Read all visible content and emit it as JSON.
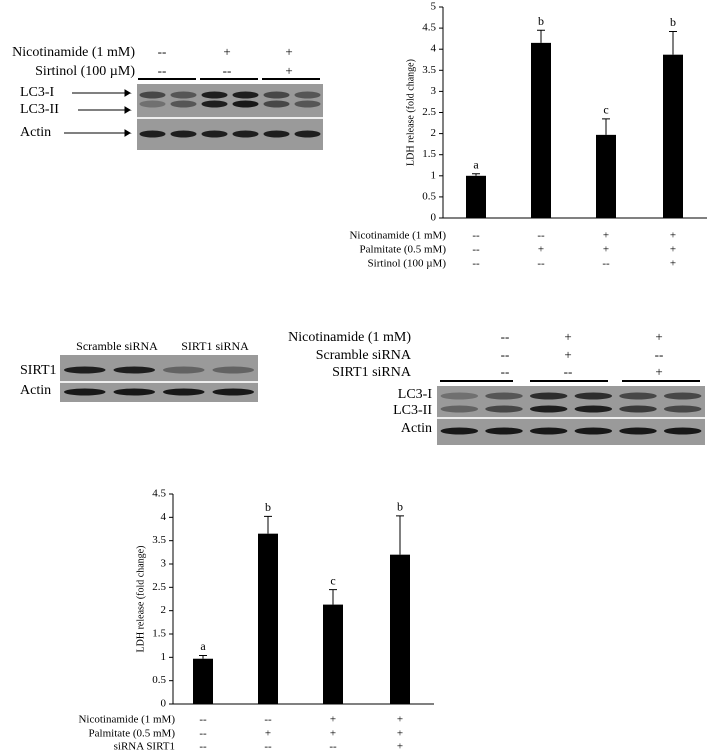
{
  "chart_data": [
    {
      "type": "bar",
      "y_label": "LDH release (fold change)",
      "categories": [
        null,
        null,
        null,
        null
      ],
      "values": [
        1.0,
        4.15,
        1.97,
        3.87
      ],
      "errors": [
        0.05,
        0.3,
        0.38,
        0.55
      ],
      "annotations": [
        "a",
        "b",
        "c",
        "b"
      ],
      "color": "#000000",
      "ylim": [
        0,
        5
      ],
      "yticks": [
        0,
        0.5,
        1,
        1.5,
        2,
        2.5,
        3,
        3.5,
        4,
        4.5,
        5
      ],
      "conditions": [
        {
          "label": "Nicotinamide (1 mM)",
          "marks": [
            "--",
            "--",
            "+",
            "+"
          ]
        },
        {
          "label": "Palmitate (0.5 mM)",
          "marks": [
            "--",
            "+",
            "+",
            "+"
          ]
        },
        {
          "label": "Sirtinol (100 µM)",
          "marks": [
            "--",
            "--",
            "--",
            "+"
          ]
        }
      ]
    },
    {
      "type": "bar",
      "y_label": "LDH release (fold change)",
      "categories": [
        null,
        null,
        null,
        null
      ],
      "values": [
        0.97,
        3.65,
        2.13,
        3.2
      ],
      "errors": [
        0.07,
        0.37,
        0.32,
        0.83
      ],
      "annotations": [
        "a",
        "b",
        "c",
        "b"
      ],
      "color": "#000000",
      "ylim": [
        0,
        4.5
      ],
      "yticks": [
        0,
        0.5,
        1,
        1.5,
        2,
        2.5,
        3,
        3.5,
        4,
        4.5
      ],
      "conditions": [
        {
          "label": "Nicotinamide (1 mM)",
          "marks": [
            "--",
            "--",
            "+",
            "+"
          ]
        },
        {
          "label": "Palmitate (0.5 mM)",
          "marks": [
            "--",
            "+",
            "+",
            "+"
          ]
        },
        {
          "label": "siRNA SIRT1",
          "marks": [
            "--",
            "--",
            "--",
            "+"
          ]
        }
      ]
    }
  ],
  "blots": [
    {
      "conditions": [
        {
          "label": "Nicotinamide (1 mM)",
          "marks": [
            "--",
            "+",
            "+"
          ]
        },
        {
          "label": "Sirtinol (100 µM)",
          "marks": [
            "--",
            "--",
            "+"
          ]
        }
      ],
      "rows": [
        "LC3-I",
        "LC3-II",
        "Actin"
      ]
    },
    {
      "groups": [
        "Scramble siRNA",
        "SIRT1 siRNA"
      ],
      "rows": [
        "SIRT1",
        "Actin"
      ]
    },
    {
      "conditions": [
        {
          "label": "Nicotinamide (1 mM)",
          "marks": [
            "--",
            "+",
            "+"
          ]
        },
        {
          "label": "Scramble siRNA",
          "marks": [
            "--",
            "+",
            "--"
          ]
        },
        {
          "label": "SIRT1 siRNA",
          "marks": [
            "--",
            "--",
            "+"
          ]
        }
      ],
      "rows": [
        "LC3-I",
        "LC3-II",
        "Actin"
      ]
    }
  ]
}
